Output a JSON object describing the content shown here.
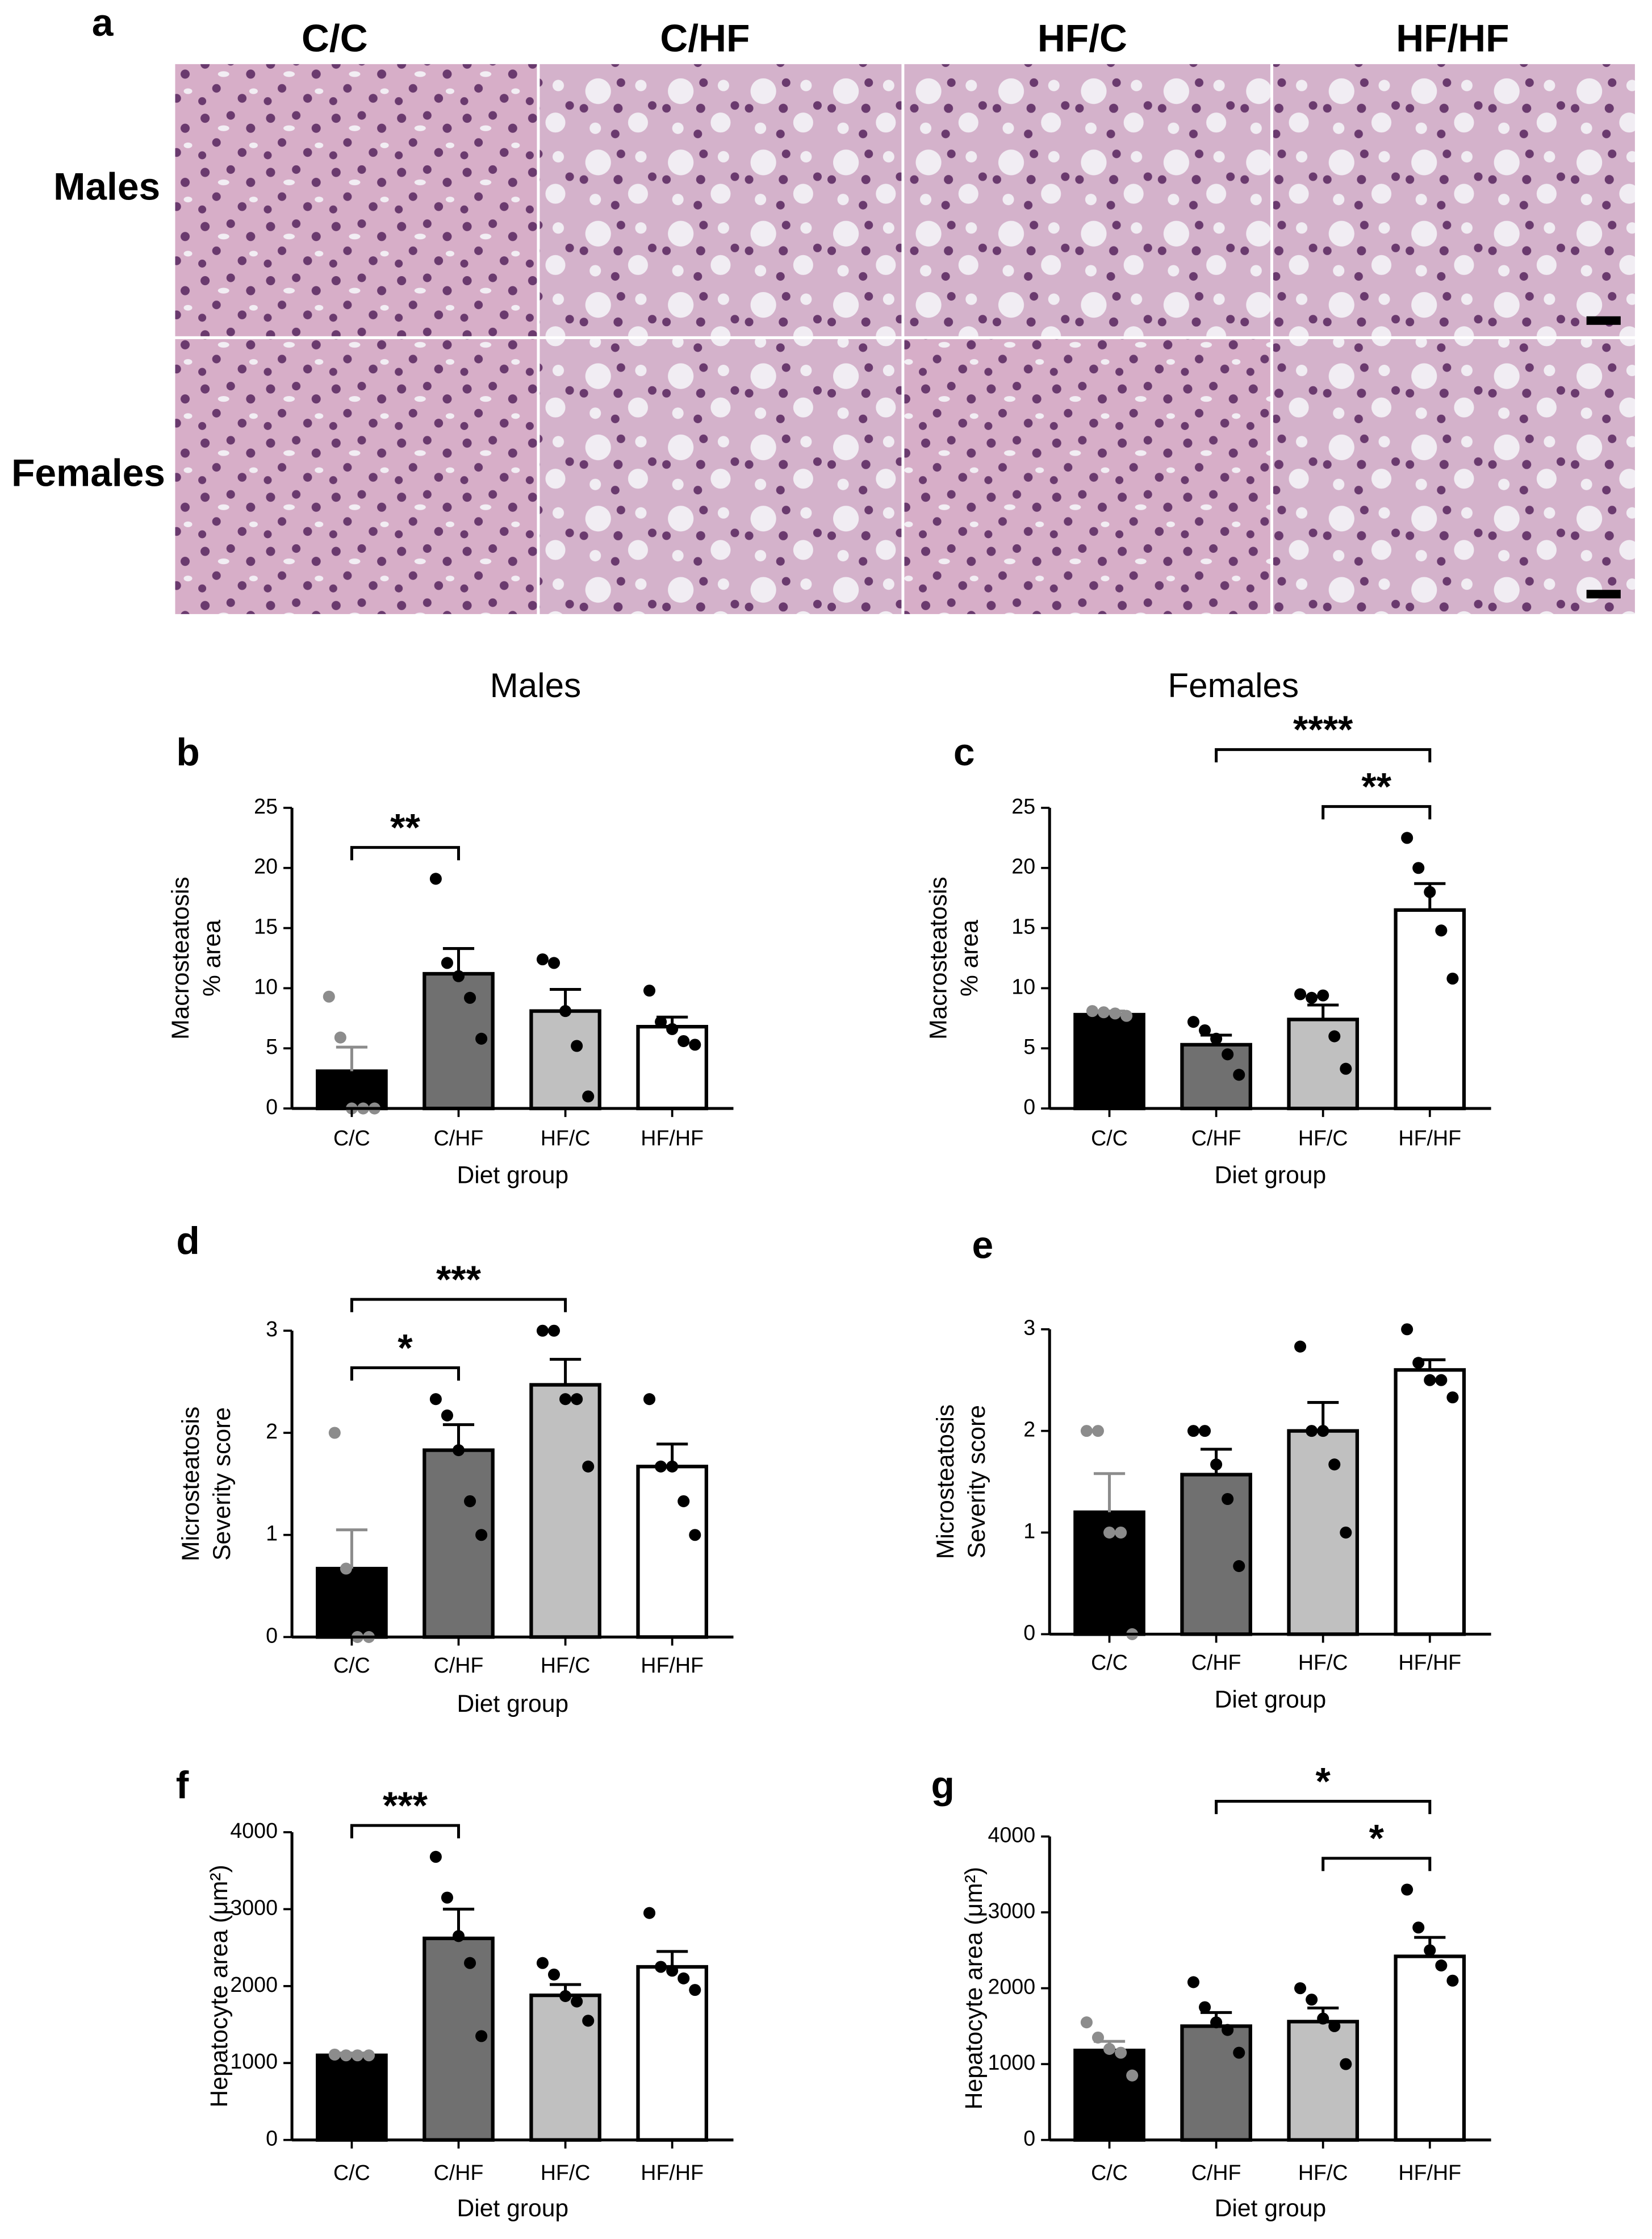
{
  "figure": {
    "panel_label": "a",
    "columns": [
      "C/C",
      "C/HF",
      "HF/C",
      "HF/HF"
    ],
    "rows": [
      "Males",
      "Females"
    ],
    "headings": [
      "Males",
      "Females"
    ]
  },
  "chart_data": [
    {
      "type": "bar",
      "panel_label": "b",
      "ylabel": [
        "Macrosteatosis",
        "% area"
      ],
      "xlabel": "Diet group",
      "categories": [
        "C/C",
        "C/HF",
        "HF/C",
        "HF/HF"
      ],
      "values": [
        3.1,
        11.2,
        8.1,
        6.8
      ],
      "errors": [
        2.0,
        2.1,
        1.8,
        0.8
      ],
      "colors": [
        "#000000",
        "#707070",
        "#c0c0c0",
        "#ffffff"
      ],
      "points": [
        [
          9.3,
          5.9,
          0,
          0,
          0
        ],
        [
          19.1,
          12.1,
          11.0,
          9.2,
          5.8
        ],
        [
          12.4,
          12.1,
          8.1,
          5.2,
          1.0
        ],
        [
          9.8,
          7.2,
          6.6,
          5.6,
          5.3
        ]
      ],
      "point_colors": [
        "#8c8c8c",
        "#000000",
        "#000000",
        "#000000"
      ],
      "ylim": [
        0,
        25
      ],
      "yticks": [
        0,
        5,
        10,
        15,
        20,
        25
      ],
      "significance": [
        {
          "between": [
            "C/C",
            "C/HF"
          ],
          "label": "**"
        }
      ]
    },
    {
      "type": "bar",
      "panel_label": "c",
      "ylabel": [
        "Macrosteatosis",
        "% area"
      ],
      "xlabel": "Diet group",
      "categories": [
        "C/C",
        "C/HF",
        "HF/C",
        "HF/HF"
      ],
      "values": [
        7.8,
        5.3,
        7.4,
        16.5
      ],
      "errors": [
        0.3,
        0.8,
        1.2,
        2.2
      ],
      "colors": [
        "#000000",
        "#707070",
        "#c0c0c0",
        "#ffffff"
      ],
      "points": [
        [
          8.1,
          8.0,
          7.9,
          7.7
        ],
        [
          7.2,
          6.5,
          5.8,
          4.5,
          2.8
        ],
        [
          9.5,
          9.2,
          9.4,
          6.0,
          3.3
        ],
        [
          22.5,
          20.0,
          18.0,
          14.8,
          10.8
        ]
      ],
      "point_colors": [
        "#8c8c8c",
        "#000000",
        "#000000",
        "#000000"
      ],
      "ylim": [
        0,
        25
      ],
      "yticks": [
        0,
        5,
        10,
        15,
        20,
        25
      ],
      "significance": [
        {
          "between": [
            "HF/C",
            "HF/HF"
          ],
          "label": "**"
        },
        {
          "between": [
            "C/HF",
            "HF/HF"
          ],
          "label": "****"
        }
      ]
    },
    {
      "type": "bar",
      "panel_label": "d",
      "ylabel": [
        "Microsteatosis",
        "Severity score"
      ],
      "xlabel": "Diet group",
      "categories": [
        "C/C",
        "C/HF",
        "HF/C",
        "HF/HF"
      ],
      "values": [
        0.67,
        1.83,
        2.47,
        1.67
      ],
      "errors": [
        0.38,
        0.25,
        0.25,
        0.22
      ],
      "colors": [
        "#000000",
        "#707070",
        "#c0c0c0",
        "#ffffff"
      ],
      "points": [
        [
          2.0,
          0.67,
          0,
          0
        ],
        [
          2.33,
          2.17,
          1.83,
          1.33,
          1.0
        ],
        [
          3.0,
          3.0,
          2.33,
          2.33,
          1.67
        ],
        [
          2.33,
          1.67,
          1.67,
          1.33,
          1.0
        ]
      ],
      "point_colors": [
        "#8c8c8c",
        "#000000",
        "#000000",
        "#000000"
      ],
      "ylim": [
        0,
        3
      ],
      "yticks": [
        0,
        1,
        2,
        3
      ],
      "significance": [
        {
          "between": [
            "C/C",
            "C/HF"
          ],
          "label": "*"
        },
        {
          "between": [
            "C/C",
            "HF/C"
          ],
          "label": "***"
        }
      ]
    },
    {
      "type": "bar",
      "panel_label": "e",
      "ylabel": [
        "Microsteatosis",
        "Severity score"
      ],
      "xlabel": "Diet group",
      "categories": [
        "C/C",
        "C/HF",
        "HF/C",
        "HF/HF"
      ],
      "values": [
        1.2,
        1.57,
        2.0,
        2.6
      ],
      "errors": [
        0.38,
        0.25,
        0.28,
        0.1
      ],
      "colors": [
        "#000000",
        "#707070",
        "#c0c0c0",
        "#ffffff"
      ],
      "points": [
        [
          2.0,
          2.0,
          1.0,
          1.0,
          0
        ],
        [
          2.0,
          2.0,
          1.67,
          1.33,
          0.67
        ],
        [
          2.83,
          2.0,
          2.0,
          1.67,
          1.0
        ],
        [
          3.0,
          2.67,
          2.5,
          2.5,
          2.33
        ]
      ],
      "point_colors": [
        "#8c8c8c",
        "#000000",
        "#000000",
        "#000000"
      ],
      "ylim": [
        0,
        3
      ],
      "yticks": [
        0,
        1,
        2,
        3
      ],
      "significance": []
    },
    {
      "type": "bar",
      "panel_label": "f",
      "ylabel": [
        "Hepatocyte area (μm²)"
      ],
      "xlabel": "Diet group",
      "categories": [
        "C/C",
        "C/HF",
        "HF/C",
        "HF/HF"
      ],
      "values": [
        1100,
        2620,
        1880,
        2250
      ],
      "errors": [
        30,
        380,
        140,
        200
      ],
      "colors": [
        "#000000",
        "#707070",
        "#c0c0c0",
        "#ffffff"
      ],
      "points": [
        [
          1110,
          1100,
          1100,
          1100
        ],
        [
          3680,
          3150,
          2650,
          2300,
          1350
        ],
        [
          2300,
          2150,
          1870,
          1800,
          1550
        ],
        [
          2950,
          2250,
          2200,
          2100,
          1950
        ]
      ],
      "point_colors": [
        "#8c8c8c",
        "#000000",
        "#000000",
        "#000000"
      ],
      "ylim": [
        0,
        4000
      ],
      "yticks": [
        0,
        1000,
        2000,
        3000,
        4000
      ],
      "significance": [
        {
          "between": [
            "C/C",
            "C/HF"
          ],
          "label": "***"
        }
      ]
    },
    {
      "type": "bar",
      "panel_label": "g",
      "ylabel": [
        "Hepatocyte area (μm²)"
      ],
      "xlabel": "Diet group",
      "categories": [
        "C/C",
        "C/HF",
        "HF/C",
        "HF/HF"
      ],
      "values": [
        1180,
        1500,
        1560,
        2420
      ],
      "errors": [
        120,
        180,
        180,
        250
      ],
      "colors": [
        "#000000",
        "#707070",
        "#c0c0c0",
        "#ffffff"
      ],
      "points": [
        [
          1550,
          1350,
          1200,
          1150,
          850
        ],
        [
          2080,
          1750,
          1550,
          1450,
          1150
        ],
        [
          2000,
          1850,
          1600,
          1500,
          1000
        ],
        [
          3300,
          2800,
          2500,
          2300,
          2100
        ]
      ],
      "point_colors": [
        "#8c8c8c",
        "#000000",
        "#000000",
        "#000000"
      ],
      "ylim": [
        0,
        4000
      ],
      "yticks": [
        0,
        1000,
        2000,
        3000,
        4000
      ],
      "significance": [
        {
          "between": [
            "HF/C",
            "HF/HF"
          ],
          "label": "*"
        },
        {
          "between": [
            "C/HF",
            "HF/HF"
          ],
          "label": "*"
        }
      ]
    }
  ]
}
